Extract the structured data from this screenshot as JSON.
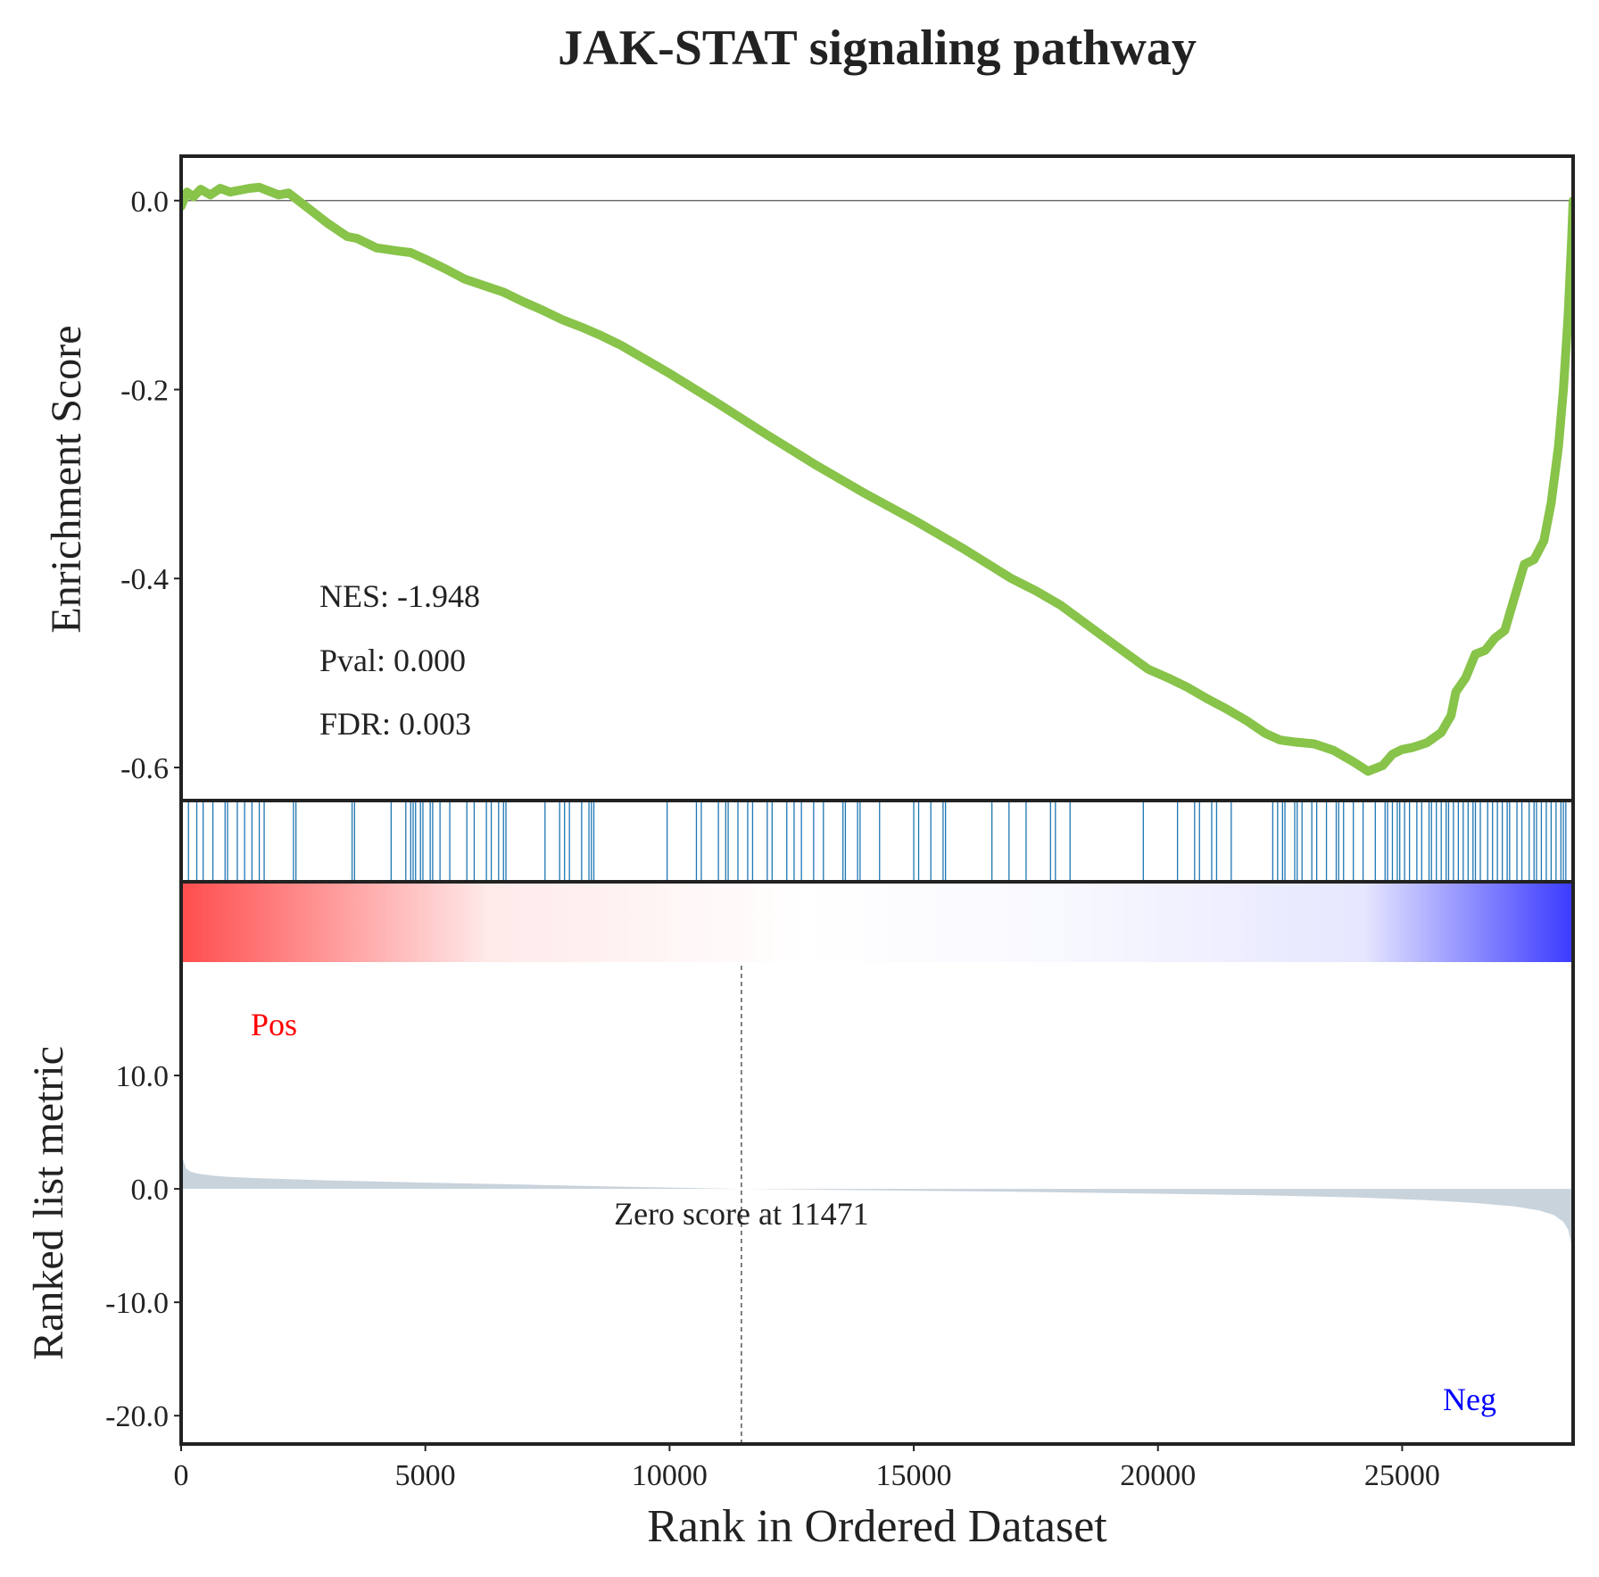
{
  "chart_data": {
    "type": "line",
    "title": "JAK-STAT signaling pathway",
    "xlabel": "Rank in Ordered Dataset",
    "xlim": [
      0,
      28500
    ],
    "x_ticks": [
      0,
      5000,
      10000,
      15000,
      20000,
      25000
    ],
    "x_tick_labels": [
      "0",
      "5000",
      "10000",
      "15000",
      "20000",
      "25000"
    ],
    "enrichment": {
      "ylabel": "Enrichment Score",
      "ylim": [
        -0.635,
        0.047
      ],
      "y_ticks": [
        0.0,
        -0.2,
        -0.4,
        -0.6
      ],
      "y_tick_labels": [
        "0.0",
        "-0.2",
        "-0.4",
        "-0.6"
      ],
      "line_color": "#88c34a",
      "baseline": 0.0,
      "x": [
        0,
        120,
        250,
        400,
        600,
        800,
        1000,
        1200,
        1400,
        1600,
        1800,
        2000,
        2200,
        2400,
        2600,
        3000,
        3400,
        3600,
        4000,
        4400,
        4700,
        5000,
        5400,
        5800,
        6200,
        6600,
        7000,
        7400,
        7800,
        8200,
        8600,
        9000,
        10000,
        11000,
        12000,
        13000,
        14000,
        15000,
        16000,
        17000,
        17500,
        18000,
        19000,
        19800,
        20200,
        20600,
        21000,
        21400,
        21800,
        22200,
        22500,
        22800,
        23200,
        23600,
        24000,
        24300,
        24600,
        24800,
        25000,
        25200,
        25500,
        25800,
        26000,
        26100,
        26300,
        26500,
        26700,
        26900,
        27100,
        27300,
        27500,
        27700,
        27900,
        28050,
        28200,
        28300,
        28400,
        28470,
        28500
      ],
      "es": [
        -0.006,
        0.009,
        0.004,
        0.012,
        0.006,
        0.013,
        0.009,
        0.011,
        0.013,
        0.014,
        0.01,
        0.006,
        0.008,
        0.0,
        -0.008,
        -0.024,
        -0.038,
        -0.04,
        -0.05,
        -0.053,
        -0.055,
        -0.062,
        -0.072,
        -0.083,
        -0.09,
        -0.097,
        -0.107,
        -0.116,
        -0.126,
        -0.134,
        -0.143,
        -0.153,
        -0.183,
        -0.215,
        -0.248,
        -0.28,
        -0.31,
        -0.338,
        -0.368,
        -0.4,
        -0.413,
        -0.428,
        -0.466,
        -0.496,
        -0.505,
        -0.515,
        -0.527,
        -0.538,
        -0.55,
        -0.564,
        -0.571,
        -0.573,
        -0.575,
        -0.582,
        -0.594,
        -0.604,
        -0.598,
        -0.586,
        -0.581,
        -0.579,
        -0.574,
        -0.563,
        -0.545,
        -0.52,
        -0.505,
        -0.48,
        -0.476,
        -0.463,
        -0.455,
        -0.42,
        -0.385,
        -0.38,
        -0.36,
        -0.32,
        -0.26,
        -0.2,
        -0.12,
        -0.04,
        0.0
      ]
    },
    "hits": [
      150,
      320,
      450,
      650,
      900,
      950,
      1150,
      1300,
      1450,
      1600,
      1700,
      2300,
      2350,
      3500,
      3550,
      4300,
      4600,
      4700,
      4750,
      4800,
      4900,
      4950,
      5100,
      5150,
      5300,
      5500,
      5850,
      6000,
      6250,
      6350,
      6500,
      6600,
      6650,
      7450,
      7750,
      7850,
      7950,
      8200,
      8350,
      8400,
      8450,
      9950,
      10550,
      10650,
      11000,
      11150,
      11200,
      11400,
      11600,
      11700,
      12000,
      12100,
      12400,
      12550,
      12700,
      12950,
      13150,
      13550,
      13600,
      13850,
      13900,
      14300,
      15000,
      15100,
      15350,
      15600,
      15650,
      16600,
      16950,
      17300,
      17800,
      17900,
      18200,
      19700,
      20400,
      20750,
      20850,
      21100,
      21200,
      21500,
      22350,
      22450,
      22550,
      22600,
      22800,
      22850,
      22950,
      23150,
      23250,
      23450,
      23650,
      23700,
      23800,
      24000,
      24200,
      24450,
      24650,
      24700,
      24800,
      24900,
      24950,
      25050,
      25150,
      25300,
      25400,
      25550,
      25600,
      25700,
      25800,
      25900,
      25950,
      26050,
      26150,
      26250,
      26350,
      26450,
      26500,
      26600,
      26750,
      26850,
      26950,
      27050,
      27150,
      27200,
      27350,
      27450,
      27600,
      27700,
      27750,
      27850,
      27950,
      28050,
      28150,
      28250,
      28300,
      28350
    ],
    "hit_color": "#1f77b4",
    "heatmap": {
      "low_color": "#ff4d4d",
      "mid_color": "#ffffff",
      "high_color": "#3a3aff"
    },
    "ranked": {
      "ylabel": "Ranked list metric",
      "ylim": [
        -22.5,
        20.0
      ],
      "y_ticks": [
        10.0,
        0.0,
        -10.0,
        -20.0
      ],
      "y_tick_labels": [
        "10.0",
        "0.0",
        "-10.0",
        "-20.0"
      ],
      "fill_color": "#c9d3dc",
      "x": [
        0,
        40,
        100,
        200,
        400,
        700,
        1000,
        1500,
        2000,
        3000,
        5000,
        7000,
        9000,
        11471,
        14000,
        17000,
        20000,
        22000,
        24000,
        25500,
        26500,
        27300,
        27800,
        28100,
        28300,
        28400,
        28460,
        28500
      ],
      "metric": [
        3.8,
        2.6,
        1.8,
        1.5,
        1.3,
        1.15,
        1.05,
        0.95,
        0.88,
        0.75,
        0.55,
        0.38,
        0.2,
        0.0,
        -0.12,
        -0.25,
        -0.42,
        -0.55,
        -0.75,
        -1.0,
        -1.25,
        -1.55,
        -1.9,
        -2.3,
        -2.9,
        -3.6,
        -4.8,
        -6.5
      ]
    },
    "zero_score_x": 11471,
    "annotations": {
      "nes": "NES: -1.948",
      "pval": "Pval: 0.000",
      "fdr": "FDR: 0.003",
      "zero_score": "Zero score at 11471",
      "pos": "Pos",
      "neg": "Neg"
    },
    "annotation_colors": {
      "pos": "#ff0000",
      "neg": "#0000ff",
      "text": "#222222"
    }
  }
}
